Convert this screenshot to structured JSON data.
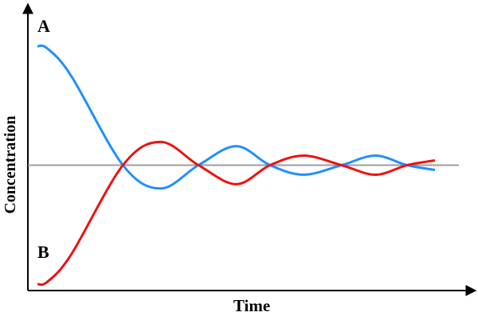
{
  "chart_data": {
    "type": "line",
    "xlabel": "Time",
    "ylabel": "Concentration",
    "labels": {
      "a": "A",
      "b": "B"
    },
    "grid": false,
    "legend": "none",
    "xlim": [
      0,
      10
    ],
    "ylim": [
      0,
      10
    ],
    "equilibrium": {
      "y": 5.0,
      "color": "#9e9e9e"
    },
    "series": [
      {
        "label_key": "a",
        "color": "#1f8fff",
        "x": [
          0.0,
          0.25,
          0.85,
          2.15,
          3.1,
          4.05,
          5.0,
          5.85,
          6.7,
          7.65,
          8.5,
          9.3,
          10.0
        ],
        "y": [
          10.0,
          9.9,
          8.75,
          5.0,
          4.02,
          5.0,
          5.8,
          5.0,
          4.6,
          5.0,
          5.4,
          5.0,
          4.8
        ]
      },
      {
        "label_key": "b",
        "color": "#ee1111",
        "x": [
          0.0,
          0.25,
          0.85,
          2.15,
          3.1,
          4.05,
          5.0,
          5.85,
          6.7,
          7.65,
          8.5,
          9.3,
          10.0
        ],
        "y": [
          0.0,
          0.1,
          1.25,
          5.0,
          5.98,
          5.0,
          4.2,
          5.0,
          5.4,
          5.0,
          4.6,
          5.0,
          5.2
        ]
      }
    ]
  }
}
